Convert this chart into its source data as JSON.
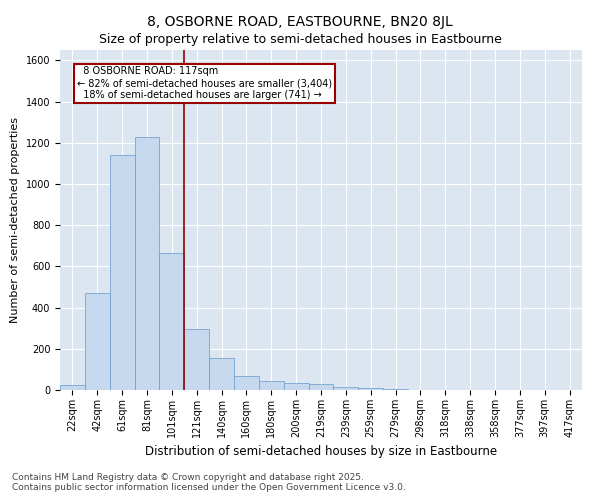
{
  "title": "8, OSBORNE ROAD, EASTBOURNE, BN20 8JL",
  "subtitle": "Size of property relative to semi-detached houses in Eastbourne",
  "xlabel": "Distribution of semi-detached houses by size in Eastbourne",
  "ylabel": "Number of semi-detached properties",
  "categories": [
    "22sqm",
    "42sqm",
    "61sqm",
    "81sqm",
    "101sqm",
    "121sqm",
    "140sqm",
    "160sqm",
    "180sqm",
    "200sqm",
    "219sqm",
    "239sqm",
    "259sqm",
    "279sqm",
    "298sqm",
    "318sqm",
    "338sqm",
    "358sqm",
    "377sqm",
    "397sqm",
    "417sqm"
  ],
  "values": [
    25,
    470,
    1140,
    1230,
    665,
    295,
    155,
    70,
    42,
    32,
    28,
    14,
    8,
    5,
    2,
    2,
    1,
    0,
    0,
    0,
    0
  ],
  "bar_color": "#c5d8ed",
  "bar_edge_color": "#6699cc",
  "vline_x": 4.5,
  "vline_color": "#990000",
  "annotation_box_color": "#990000",
  "bg_color": "#dce6f1",
  "ylim": [
    0,
    1650
  ],
  "yticks": [
    0,
    200,
    400,
    600,
    800,
    1000,
    1200,
    1400,
    1600
  ],
  "marker_label": "8 OSBORNE ROAD: 117sqm",
  "pct_smaller": 82,
  "pct_smaller_count": 3404,
  "pct_larger": 18,
  "pct_larger_count": 741,
  "footnote1": "Contains HM Land Registry data © Crown copyright and database right 2025.",
  "footnote2": "Contains public sector information licensed under the Open Government Licence v3.0.",
  "title_fontsize": 10,
  "subtitle_fontsize": 9,
  "ylabel_fontsize": 8,
  "xlabel_fontsize": 8.5,
  "tick_fontsize": 7,
  "annotation_fontsize": 7,
  "footnote_fontsize": 6.5
}
